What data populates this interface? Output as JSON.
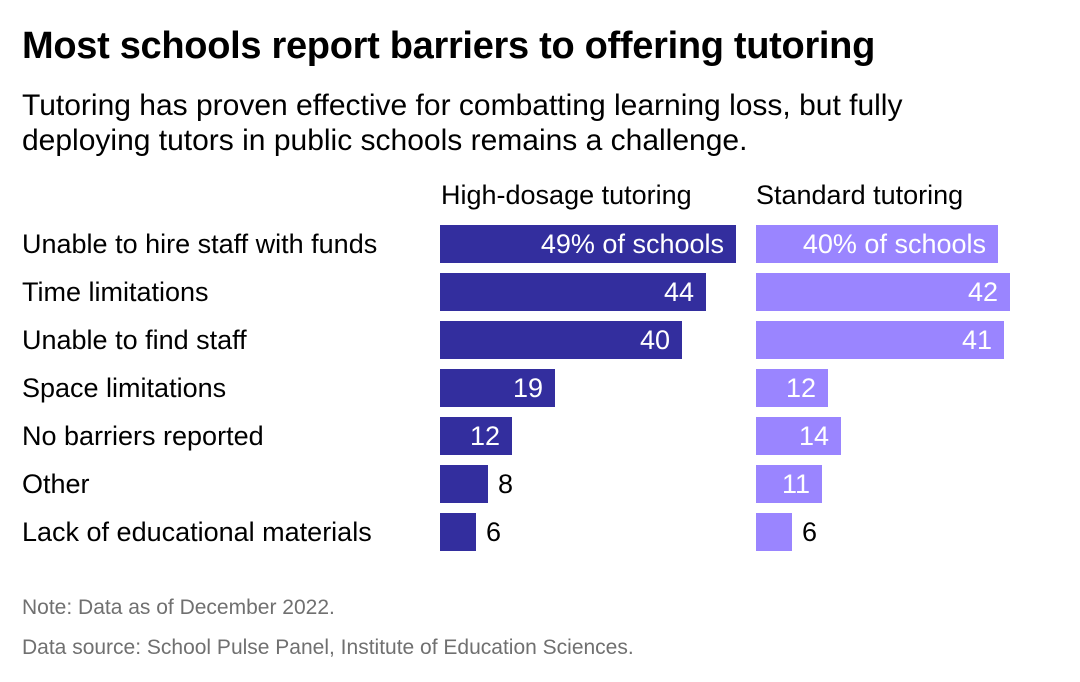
{
  "title": "Most schools report barriers to offering tutoring",
  "subtitle": {
    "line1": "Tutoring has proven effective for combatting learning loss, but fully",
    "line2": "deploying tutors in public schools remains a challenge."
  },
  "notes": {
    "note": "Note: Data as of December 2022.",
    "source": "Data source: School Pulse Panel, Institute of Education Sciences."
  },
  "colors": {
    "high_dosage": "#332e9e",
    "standard": "#9a85ff",
    "inside_label": "#ffffff",
    "outside_label": "#000000",
    "note_text": "#707070"
  },
  "chart_data": {
    "type": "bar",
    "orientation": "horizontal",
    "layout": "two side-by-side panels",
    "unit": "% of schools",
    "first_value_suffix": "% of schools",
    "categories": [
      "Unable to hire staff with funds",
      "Time limitations",
      "Unable to find staff",
      "Space limitations",
      "No barriers reported",
      "Other",
      "Lack of educational materials"
    ],
    "series": [
      {
        "name": "High-dosage tutoring",
        "color": "#332e9e",
        "values": [
          49,
          44,
          40,
          19,
          12,
          8,
          6
        ]
      },
      {
        "name": "Standard tutoring",
        "color": "#9a85ff",
        "values": [
          40,
          42,
          41,
          12,
          14,
          11,
          6
        ]
      }
    ],
    "xlim": [
      0,
      49
    ],
    "grid": false,
    "legend": "none"
  }
}
